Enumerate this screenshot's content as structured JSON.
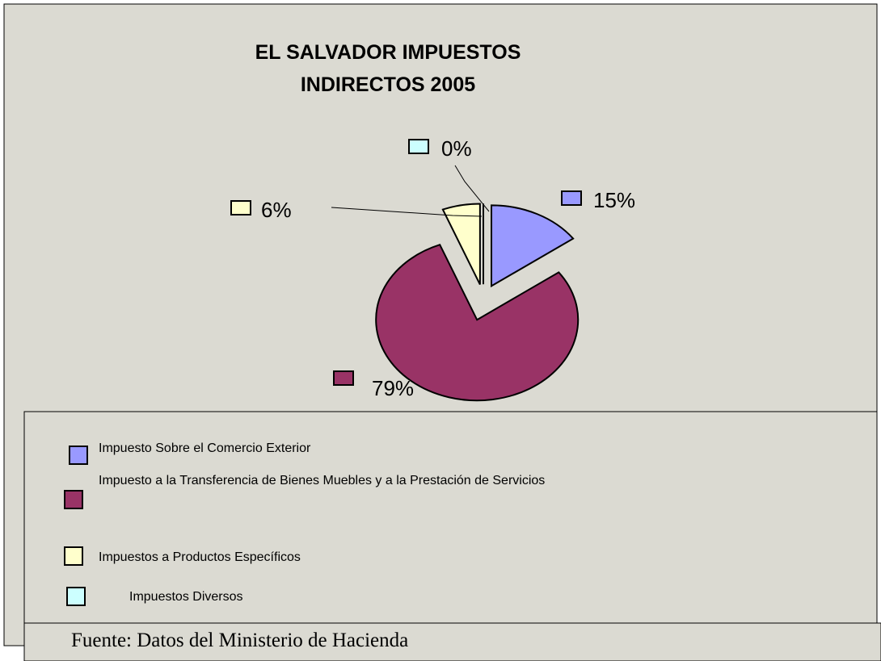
{
  "chart_data": {
    "type": "pie",
    "title": "EL SALVADOR IMPUESTOS INDIRECTOS 2005",
    "categories": [
      "Impuesto Sobre el Comercio Exterior",
      "Impuesto a la Transferencia de Bienes Muebles y a la Prestación de Servicios",
      "Impuestos a Productos Específicos",
      "Impuestos Diversos"
    ],
    "values": [
      15,
      79,
      6,
      0
    ],
    "value_labels": [
      "15%",
      "79%",
      "6%",
      "0%"
    ],
    "colors": [
      "#9999ff",
      "#993366",
      "#ffffcc",
      "#ccffff"
    ],
    "source": "Fuente: Datos del  Ministerio de Hacienda"
  }
}
